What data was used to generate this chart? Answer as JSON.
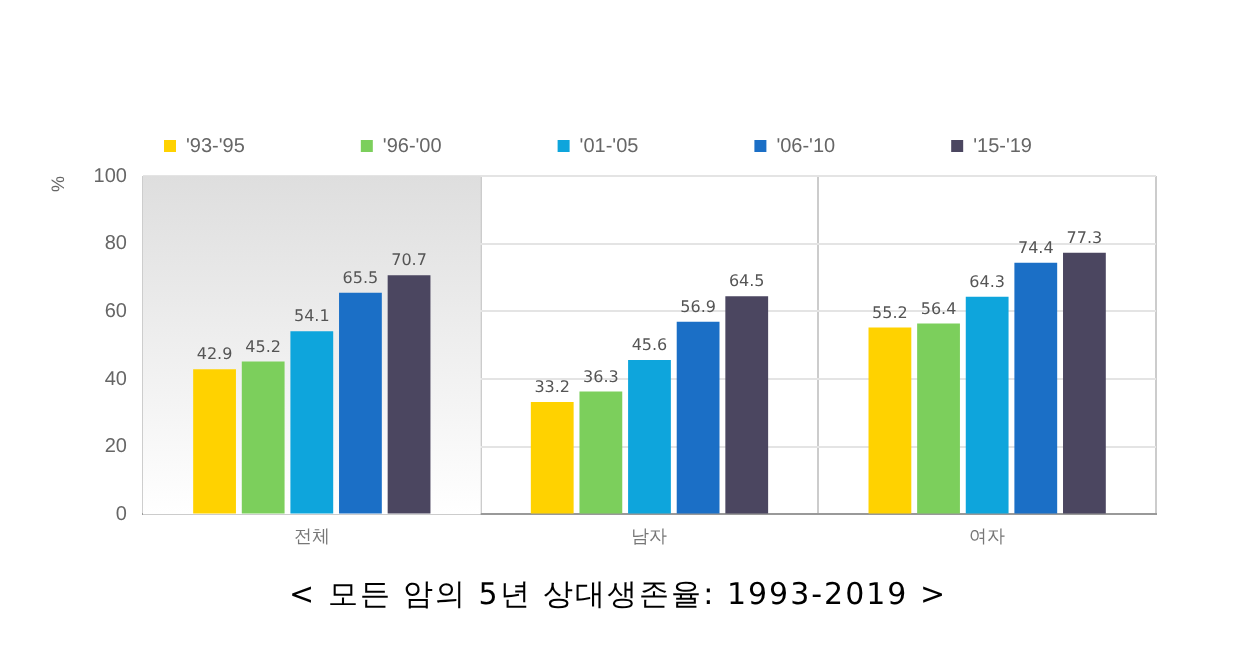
{
  "chart_data": {
    "type": "bar",
    "title": "< 모든 암의 5년 상대생존율: 1993-2019 >",
    "ylabel": "%",
    "categories": [
      "전체",
      "남자",
      "여자"
    ],
    "series": [
      {
        "name": "'93-'95",
        "color": "#ffd200",
        "values": [
          42.9,
          33.2,
          55.2
        ]
      },
      {
        "name": "'96-'00",
        "color": "#7ccf5c",
        "values": [
          45.2,
          36.3,
          56.4
        ]
      },
      {
        "name": "'01-'05",
        "color": "#0ea5dc",
        "values": [
          54.1,
          45.6,
          64.3
        ]
      },
      {
        "name": "'06-'10",
        "color": "#1b6fc6",
        "values": [
          65.5,
          56.9,
          74.4
        ]
      },
      {
        "name": "'15-'19",
        "color": "#4b4660",
        "values": [
          70.7,
          64.5,
          77.3
        ]
      }
    ],
    "ylim": [
      0,
      100
    ],
    "yticks": [
      0,
      20,
      40,
      60,
      80,
      100
    ],
    "grid": true,
    "legend": "top",
    "data_labels": true,
    "bands": [
      {
        "axis": "x",
        "from": "전체",
        "to": "전체",
        "color": "#dedede"
      }
    ]
  }
}
